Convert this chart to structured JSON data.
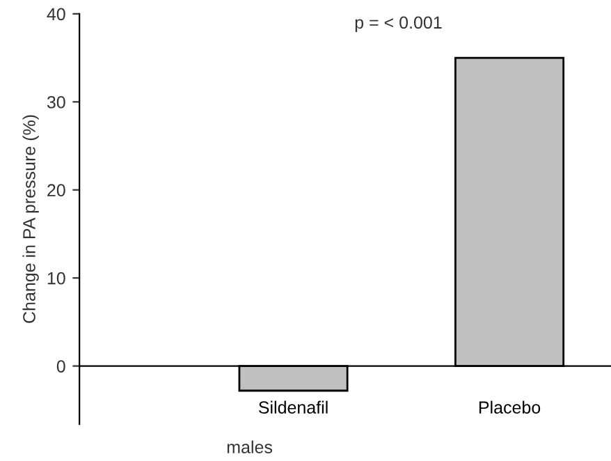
{
  "chart_data": {
    "type": "bar",
    "categories": [
      "Sildenafil",
      "Placebo"
    ],
    "values": [
      -2.8,
      35
    ],
    "color": "#c0c0c0",
    "ylabel": "Change in PA pressure (%)",
    "xlabel": "males",
    "annotations": [
      "p = < 0.001"
    ],
    "ylim": [
      -6.6,
      40
    ],
    "yticks": [
      0,
      10,
      20,
      30,
      40
    ],
    "grid": false,
    "legend": false
  }
}
